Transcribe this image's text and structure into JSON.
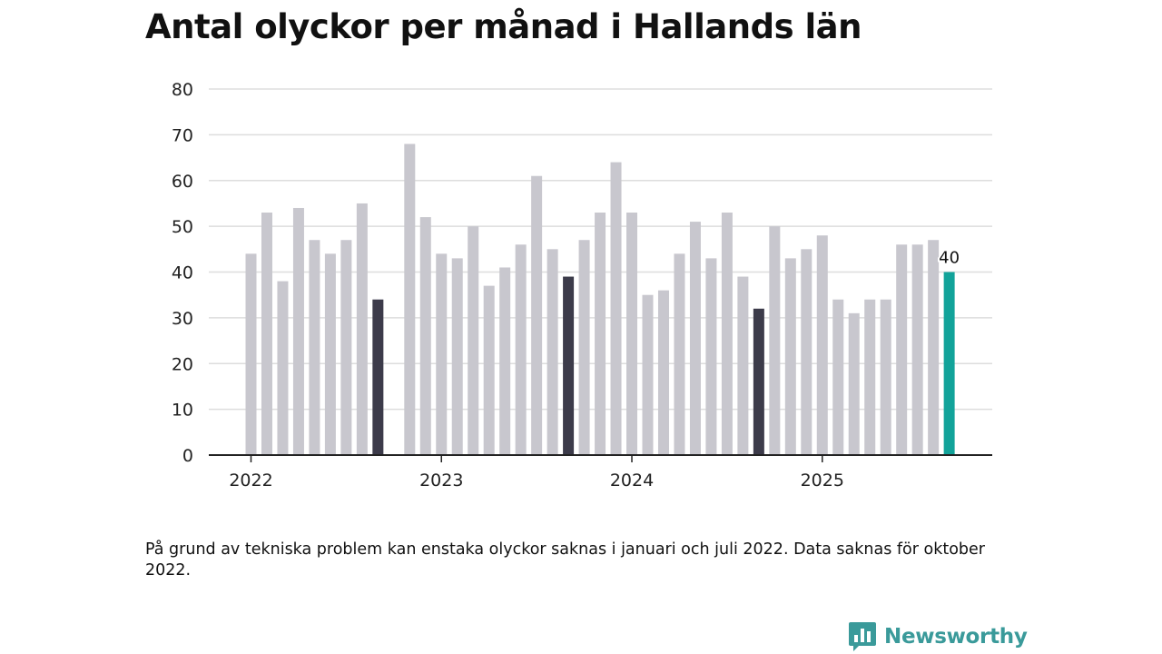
{
  "page": {
    "title": "Antal olyckor per månad i Hallands län",
    "footnote": "På grund av tekniska problem kan enstaka olyckor saknas i januari och juli 2022. Data saknas för oktober 2022.",
    "brand": "Newsworthy"
  },
  "colors": {
    "bar_default": "#c8c7ce",
    "bar_september": "#3c3b4a",
    "bar_latest": "#12a39a",
    "grid": "#dddddd",
    "axis": "#222222",
    "brand": "#3a9a9a"
  },
  "chart_data": {
    "type": "bar",
    "title": "Antal olyckor per månad i Hallands län",
    "xlabel": "",
    "ylabel": "",
    "ylim": [
      0,
      80
    ],
    "yticks": [
      0,
      10,
      20,
      30,
      40,
      50,
      60,
      70,
      80
    ],
    "grid": true,
    "x_tick_labels": [
      {
        "label": "2022",
        "month": "2022-01"
      },
      {
        "label": "2023",
        "month": "2023-01"
      },
      {
        "label": "2024",
        "month": "2024-01"
      },
      {
        "label": "2025",
        "month": "2025-01"
      }
    ],
    "points": [
      {
        "month": "2022-01",
        "value": 44,
        "kind": "default"
      },
      {
        "month": "2022-02",
        "value": 53,
        "kind": "default"
      },
      {
        "month": "2022-03",
        "value": 38,
        "kind": "default"
      },
      {
        "month": "2022-04",
        "value": 54,
        "kind": "default"
      },
      {
        "month": "2022-05",
        "value": 47,
        "kind": "default"
      },
      {
        "month": "2022-06",
        "value": 44,
        "kind": "default"
      },
      {
        "month": "2022-07",
        "value": 47,
        "kind": "default"
      },
      {
        "month": "2022-08",
        "value": 55,
        "kind": "default"
      },
      {
        "month": "2022-09",
        "value": 34,
        "kind": "september"
      },
      {
        "month": "2022-10",
        "value": null,
        "kind": "missing"
      },
      {
        "month": "2022-11",
        "value": 68,
        "kind": "default"
      },
      {
        "month": "2022-12",
        "value": 52,
        "kind": "default"
      },
      {
        "month": "2023-01",
        "value": 44,
        "kind": "default"
      },
      {
        "month": "2023-02",
        "value": 43,
        "kind": "default"
      },
      {
        "month": "2023-03",
        "value": 50,
        "kind": "default"
      },
      {
        "month": "2023-04",
        "value": 37,
        "kind": "default"
      },
      {
        "month": "2023-05",
        "value": 41,
        "kind": "default"
      },
      {
        "month": "2023-06",
        "value": 46,
        "kind": "default"
      },
      {
        "month": "2023-07",
        "value": 61,
        "kind": "default"
      },
      {
        "month": "2023-08",
        "value": 45,
        "kind": "default"
      },
      {
        "month": "2023-09",
        "value": 39,
        "kind": "september"
      },
      {
        "month": "2023-10",
        "value": 47,
        "kind": "default"
      },
      {
        "month": "2023-11",
        "value": 53,
        "kind": "default"
      },
      {
        "month": "2023-12",
        "value": 64,
        "kind": "default"
      },
      {
        "month": "2024-01",
        "value": 53,
        "kind": "default"
      },
      {
        "month": "2024-02",
        "value": 35,
        "kind": "default"
      },
      {
        "month": "2024-03",
        "value": 36,
        "kind": "default"
      },
      {
        "month": "2024-04",
        "value": 44,
        "kind": "default"
      },
      {
        "month": "2024-05",
        "value": 51,
        "kind": "default"
      },
      {
        "month": "2024-06",
        "value": 43,
        "kind": "default"
      },
      {
        "month": "2024-07",
        "value": 53,
        "kind": "default"
      },
      {
        "month": "2024-08",
        "value": 39,
        "kind": "default"
      },
      {
        "month": "2024-09",
        "value": 32,
        "kind": "september"
      },
      {
        "month": "2024-10",
        "value": 50,
        "kind": "default"
      },
      {
        "month": "2024-11",
        "value": 43,
        "kind": "default"
      },
      {
        "month": "2024-12",
        "value": 45,
        "kind": "default"
      },
      {
        "month": "2025-01",
        "value": 48,
        "kind": "default"
      },
      {
        "month": "2025-02",
        "value": 34,
        "kind": "default"
      },
      {
        "month": "2025-03",
        "value": 31,
        "kind": "default"
      },
      {
        "month": "2025-04",
        "value": 34,
        "kind": "default"
      },
      {
        "month": "2025-05",
        "value": 34,
        "kind": "default"
      },
      {
        "month": "2025-06",
        "value": 46,
        "kind": "default"
      },
      {
        "month": "2025-07",
        "value": 46,
        "kind": "default"
      },
      {
        "month": "2025-08",
        "value": 47,
        "kind": "default"
      },
      {
        "month": "2025-09",
        "value": 40,
        "kind": "latest"
      }
    ],
    "annotations": [
      {
        "month": "2025-09",
        "text": "40"
      }
    ]
  }
}
